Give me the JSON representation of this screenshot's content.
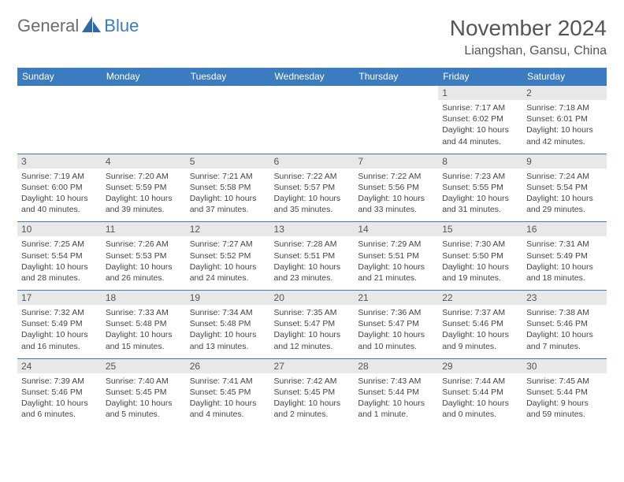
{
  "logo": {
    "general": "General",
    "blue": "Blue"
  },
  "title": "November 2024",
  "location": "Liangshan, Gansu, China",
  "colors": {
    "header_bg": "#3b7bbf",
    "header_text": "#ffffff",
    "daynum_bg": "#e8e8e8",
    "rule": "#3b7bbf",
    "text": "#444444",
    "title_text": "#555555"
  },
  "daysOfWeek": [
    "Sunday",
    "Monday",
    "Tuesday",
    "Wednesday",
    "Thursday",
    "Friday",
    "Saturday"
  ],
  "weeks": [
    [
      {
        "n": "",
        "sr": "",
        "ss": "",
        "dl": ""
      },
      {
        "n": "",
        "sr": "",
        "ss": "",
        "dl": ""
      },
      {
        "n": "",
        "sr": "",
        "ss": "",
        "dl": ""
      },
      {
        "n": "",
        "sr": "",
        "ss": "",
        "dl": ""
      },
      {
        "n": "",
        "sr": "",
        "ss": "",
        "dl": ""
      },
      {
        "n": "1",
        "sr": "Sunrise: 7:17 AM",
        "ss": "Sunset: 6:02 PM",
        "dl": "Daylight: 10 hours and 44 minutes."
      },
      {
        "n": "2",
        "sr": "Sunrise: 7:18 AM",
        "ss": "Sunset: 6:01 PM",
        "dl": "Daylight: 10 hours and 42 minutes."
      }
    ],
    [
      {
        "n": "3",
        "sr": "Sunrise: 7:19 AM",
        "ss": "Sunset: 6:00 PM",
        "dl": "Daylight: 10 hours and 40 minutes."
      },
      {
        "n": "4",
        "sr": "Sunrise: 7:20 AM",
        "ss": "Sunset: 5:59 PM",
        "dl": "Daylight: 10 hours and 39 minutes."
      },
      {
        "n": "5",
        "sr": "Sunrise: 7:21 AM",
        "ss": "Sunset: 5:58 PM",
        "dl": "Daylight: 10 hours and 37 minutes."
      },
      {
        "n": "6",
        "sr": "Sunrise: 7:22 AM",
        "ss": "Sunset: 5:57 PM",
        "dl": "Daylight: 10 hours and 35 minutes."
      },
      {
        "n": "7",
        "sr": "Sunrise: 7:22 AM",
        "ss": "Sunset: 5:56 PM",
        "dl": "Daylight: 10 hours and 33 minutes."
      },
      {
        "n": "8",
        "sr": "Sunrise: 7:23 AM",
        "ss": "Sunset: 5:55 PM",
        "dl": "Daylight: 10 hours and 31 minutes."
      },
      {
        "n": "9",
        "sr": "Sunrise: 7:24 AM",
        "ss": "Sunset: 5:54 PM",
        "dl": "Daylight: 10 hours and 29 minutes."
      }
    ],
    [
      {
        "n": "10",
        "sr": "Sunrise: 7:25 AM",
        "ss": "Sunset: 5:54 PM",
        "dl": "Daylight: 10 hours and 28 minutes."
      },
      {
        "n": "11",
        "sr": "Sunrise: 7:26 AM",
        "ss": "Sunset: 5:53 PM",
        "dl": "Daylight: 10 hours and 26 minutes."
      },
      {
        "n": "12",
        "sr": "Sunrise: 7:27 AM",
        "ss": "Sunset: 5:52 PM",
        "dl": "Daylight: 10 hours and 24 minutes."
      },
      {
        "n": "13",
        "sr": "Sunrise: 7:28 AM",
        "ss": "Sunset: 5:51 PM",
        "dl": "Daylight: 10 hours and 23 minutes."
      },
      {
        "n": "14",
        "sr": "Sunrise: 7:29 AM",
        "ss": "Sunset: 5:51 PM",
        "dl": "Daylight: 10 hours and 21 minutes."
      },
      {
        "n": "15",
        "sr": "Sunrise: 7:30 AM",
        "ss": "Sunset: 5:50 PM",
        "dl": "Daylight: 10 hours and 19 minutes."
      },
      {
        "n": "16",
        "sr": "Sunrise: 7:31 AM",
        "ss": "Sunset: 5:49 PM",
        "dl": "Daylight: 10 hours and 18 minutes."
      }
    ],
    [
      {
        "n": "17",
        "sr": "Sunrise: 7:32 AM",
        "ss": "Sunset: 5:49 PM",
        "dl": "Daylight: 10 hours and 16 minutes."
      },
      {
        "n": "18",
        "sr": "Sunrise: 7:33 AM",
        "ss": "Sunset: 5:48 PM",
        "dl": "Daylight: 10 hours and 15 minutes."
      },
      {
        "n": "19",
        "sr": "Sunrise: 7:34 AM",
        "ss": "Sunset: 5:48 PM",
        "dl": "Daylight: 10 hours and 13 minutes."
      },
      {
        "n": "20",
        "sr": "Sunrise: 7:35 AM",
        "ss": "Sunset: 5:47 PM",
        "dl": "Daylight: 10 hours and 12 minutes."
      },
      {
        "n": "21",
        "sr": "Sunrise: 7:36 AM",
        "ss": "Sunset: 5:47 PM",
        "dl": "Daylight: 10 hours and 10 minutes."
      },
      {
        "n": "22",
        "sr": "Sunrise: 7:37 AM",
        "ss": "Sunset: 5:46 PM",
        "dl": "Daylight: 10 hours and 9 minutes."
      },
      {
        "n": "23",
        "sr": "Sunrise: 7:38 AM",
        "ss": "Sunset: 5:46 PM",
        "dl": "Daylight: 10 hours and 7 minutes."
      }
    ],
    [
      {
        "n": "24",
        "sr": "Sunrise: 7:39 AM",
        "ss": "Sunset: 5:46 PM",
        "dl": "Daylight: 10 hours and 6 minutes."
      },
      {
        "n": "25",
        "sr": "Sunrise: 7:40 AM",
        "ss": "Sunset: 5:45 PM",
        "dl": "Daylight: 10 hours and 5 minutes."
      },
      {
        "n": "26",
        "sr": "Sunrise: 7:41 AM",
        "ss": "Sunset: 5:45 PM",
        "dl": "Daylight: 10 hours and 4 minutes."
      },
      {
        "n": "27",
        "sr": "Sunrise: 7:42 AM",
        "ss": "Sunset: 5:45 PM",
        "dl": "Daylight: 10 hours and 2 minutes."
      },
      {
        "n": "28",
        "sr": "Sunrise: 7:43 AM",
        "ss": "Sunset: 5:44 PM",
        "dl": "Daylight: 10 hours and 1 minute."
      },
      {
        "n": "29",
        "sr": "Sunrise: 7:44 AM",
        "ss": "Sunset: 5:44 PM",
        "dl": "Daylight: 10 hours and 0 minutes."
      },
      {
        "n": "30",
        "sr": "Sunrise: 7:45 AM",
        "ss": "Sunset: 5:44 PM",
        "dl": "Daylight: 9 hours and 59 minutes."
      }
    ]
  ]
}
